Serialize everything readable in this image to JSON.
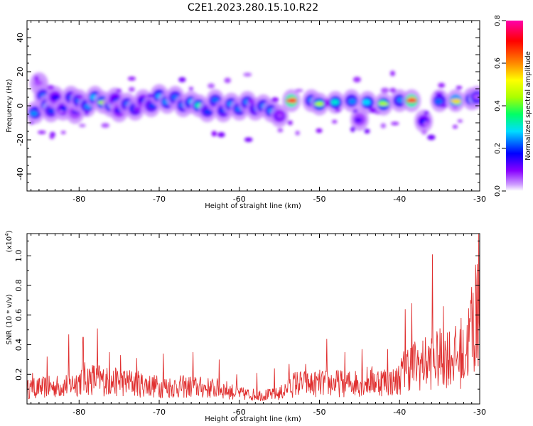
{
  "title": "C2E1.2023.280.15.10.R22",
  "colors": {
    "snr_line": "#e03030",
    "colormap": [
      "#ffffff",
      "#cc99ff",
      "#8800ff",
      "#0000ff",
      "#00ddff",
      "#00ff66",
      "#aaff00",
      "#ffff00",
      "#ff8800",
      "#ff0000",
      "#ff00aa"
    ]
  },
  "chart_data": [
    {
      "type": "heatmap",
      "xlabel": "Height of straight line (km)",
      "ylabel": "Frequency (Hz)",
      "xlim": [
        -86.5,
        -30
      ],
      "ylim": [
        -50,
        50
      ],
      "xticks": [
        -80,
        -70,
        -60,
        -50,
        -40,
        -30
      ],
      "yticks": [
        -40,
        -20,
        0,
        20,
        40
      ],
      "colorbar": {
        "label": "Normalized spectral amplitude",
        "range": [
          0,
          0.8
        ],
        "ticks": [
          "0.0",
          "0.2",
          "0.4",
          "0.6",
          "0.8"
        ]
      },
      "blobs": [
        {
          "x": -85.5,
          "y": -4,
          "v": 0.3
        },
        {
          "x": -85,
          "y": 13,
          "v": 0.08
        },
        {
          "x": -84.5,
          "y": 6,
          "v": 0.28
        },
        {
          "x": -84,
          "y": 0,
          "v": 0.32
        },
        {
          "x": -83.5,
          "y": -3,
          "v": 0.25
        },
        {
          "x": -83,
          "y": 5,
          "v": 0.2
        },
        {
          "x": -82,
          "y": -2,
          "v": 0.22
        },
        {
          "x": -81,
          "y": 5,
          "v": 0.25
        },
        {
          "x": -80.5,
          "y": -4,
          "v": 0.15
        },
        {
          "x": -80,
          "y": 3,
          "v": 0.28
        },
        {
          "x": -79,
          "y": 0,
          "v": 0.3
        },
        {
          "x": -78,
          "y": 5,
          "v": 0.33
        },
        {
          "x": -77,
          "y": 2,
          "v": 0.45
        },
        {
          "x": -76,
          "y": 0,
          "v": 0.3
        },
        {
          "x": -75.5,
          "y": 4,
          "v": 0.22
        },
        {
          "x": -75,
          "y": -3,
          "v": 0.18
        },
        {
          "x": -74,
          "y": 1,
          "v": 0.28
        },
        {
          "x": -73,
          "y": -2,
          "v": 0.25
        },
        {
          "x": -72,
          "y": 3,
          "v": 0.2
        },
        {
          "x": -71,
          "y": 0,
          "v": 0.25
        },
        {
          "x": -70,
          "y": 6,
          "v": 0.32
        },
        {
          "x": -69,
          "y": 2,
          "v": 0.3
        },
        {
          "x": -68,
          "y": 5,
          "v": 0.28
        },
        {
          "x": -67,
          "y": 0,
          "v": 0.28
        },
        {
          "x": -66,
          "y": 2,
          "v": 0.33
        },
        {
          "x": -65,
          "y": 0,
          "v": 0.4
        },
        {
          "x": -64,
          "y": -3,
          "v": 0.25
        },
        {
          "x": -63,
          "y": 3,
          "v": 0.28
        },
        {
          "x": -62,
          "y": -3,
          "v": 0.25
        },
        {
          "x": -61,
          "y": 1,
          "v": 0.3
        },
        {
          "x": -60,
          "y": -2,
          "v": 0.28
        },
        {
          "x": -59,
          "y": 2,
          "v": 0.3
        },
        {
          "x": -58,
          "y": -2,
          "v": 0.25
        },
        {
          "x": -57,
          "y": 0,
          "v": 0.3
        },
        {
          "x": -56,
          "y": -3,
          "v": 0.3
        },
        {
          "x": -55,
          "y": -6,
          "v": 0.2
        },
        {
          "x": -53.5,
          "y": 3,
          "v": 0.72
        },
        {
          "x": -51,
          "y": 3,
          "v": 0.3
        },
        {
          "x": -50,
          "y": 1,
          "v": 0.45
        },
        {
          "x": -48,
          "y": 2,
          "v": 0.38
        },
        {
          "x": -46,
          "y": 3,
          "v": 0.3
        },
        {
          "x": -45,
          "y": -8,
          "v": 0.15
        },
        {
          "x": -44,
          "y": 2,
          "v": 0.35
        },
        {
          "x": -42,
          "y": 1,
          "v": 0.45
        },
        {
          "x": -40,
          "y": 3,
          "v": 0.3
        },
        {
          "x": -38.5,
          "y": 3,
          "v": 0.72
        },
        {
          "x": -37,
          "y": -9,
          "v": 0.22
        },
        {
          "x": -35,
          "y": 3,
          "v": 0.28
        },
        {
          "x": -33,
          "y": 3,
          "v": 0.55
        },
        {
          "x": -31,
          "y": 4,
          "v": 0.35
        },
        {
          "x": -30.3,
          "y": 5,
          "v": 0.3
        }
      ]
    },
    {
      "type": "line",
      "xlabel": "Height of straight line (km)",
      "ylabel": "SNR (10 * v/v)",
      "yscale_label": "(x10",
      "yscale_exp": "4",
      "yscale_close": ")",
      "xlim": [
        -86.5,
        -30
      ],
      "ylim": [
        0,
        11500
      ],
      "xticks": [
        -80,
        -70,
        -60,
        -50,
        -40,
        -30
      ],
      "yticks": [
        2000,
        4000,
        6000,
        8000,
        10000
      ],
      "ytick_labels": [
        "0.2",
        "0.4",
        "0.6",
        "0.8",
        "1.0"
      ],
      "series": [
        {
          "envelope_x": [
            -86.5,
            -85,
            -83,
            -81,
            -79.5,
            -78,
            -76,
            -74,
            -72,
            -70,
            -68,
            -66,
            -64,
            -62,
            -60,
            -58,
            -56,
            -55,
            -53,
            -51,
            -50,
            -48,
            -46,
            -44,
            -42,
            -40.5,
            -39,
            -37,
            -35.5,
            -34,
            -32,
            -31,
            -30.2
          ],
          "envelope_y": [
            1300,
            1400,
            1500,
            1700,
            2200,
            2200,
            1900,
            1900,
            1700,
            1500,
            1500,
            1500,
            1400,
            1300,
            900,
            800,
            800,
            900,
            1800,
            1700,
            1800,
            1800,
            1800,
            2000,
            2000,
            1900,
            3300,
            3500,
            3800,
            4200,
            4000,
            6500,
            7500
          ],
          "peaks": [
            [
              -85.8,
              2100
            ],
            [
              -84,
              3200
            ],
            [
              -81.3,
              4700
            ],
            [
              -79.5,
              4500
            ],
            [
              -77.7,
              5100
            ],
            [
              -76.2,
              3500
            ],
            [
              -74.8,
              3300
            ],
            [
              -72.8,
              3100
            ],
            [
              -69.5,
              3400
            ],
            [
              -65.8,
              3500
            ],
            [
              -62.5,
              3000
            ],
            [
              -60.3,
              2000
            ],
            [
              -57.8,
              2100
            ],
            [
              -55.6,
              2400
            ],
            [
              -53.8,
              2700
            ],
            [
              -51.7,
              2700
            ],
            [
              -49.1,
              4400
            ],
            [
              -46.8,
              3500
            ],
            [
              -44.7,
              3700
            ],
            [
              -41.5,
              3700
            ],
            [
              -39.3,
              6400
            ],
            [
              -38.5,
              6800
            ],
            [
              -35.9,
              10100
            ],
            [
              -34.5,
              6600
            ],
            [
              -32.3,
              5800
            ],
            [
              -31,
              7900
            ],
            [
              -30.5,
              9400
            ],
            [
              -30.1,
              11500
            ]
          ]
        }
      ]
    }
  ]
}
